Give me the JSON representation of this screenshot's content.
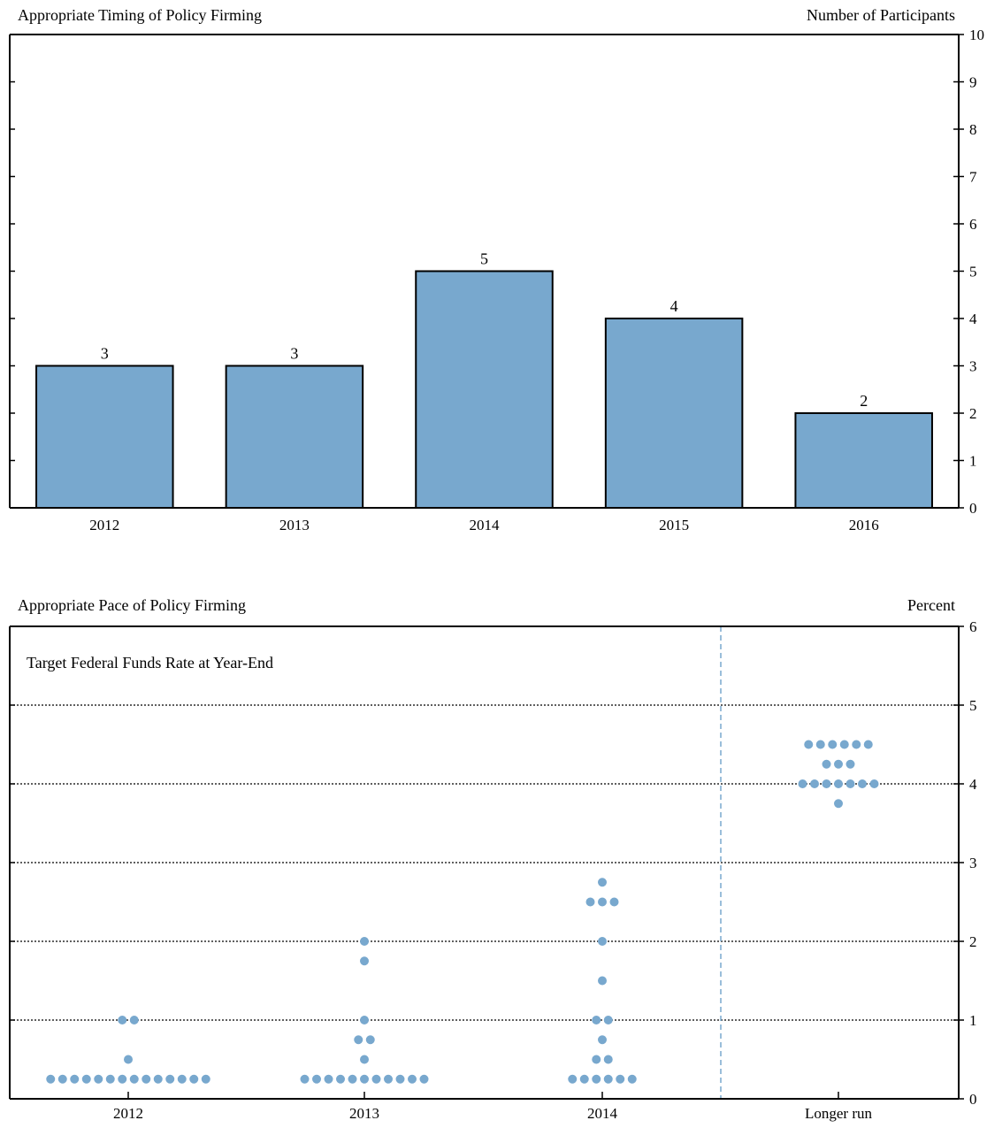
{
  "colors": {
    "bar_fill": "#78a8ce",
    "dot_fill": "#78a8ce",
    "axis": "#000000",
    "divider": "#78a8ce"
  },
  "chart_data": [
    {
      "type": "bar",
      "title": "Appropriate Timing of Policy Firming",
      "ylabel": "Number of Participants",
      "categories": [
        "2012",
        "2013",
        "2014",
        "2015",
        "2016"
      ],
      "values": [
        3,
        3,
        5,
        4,
        2
      ],
      "data_labels": [
        "3",
        "3",
        "5",
        "4",
        "2"
      ],
      "ylim": [
        0,
        10
      ],
      "yticks": [
        0,
        1,
        2,
        3,
        4,
        5,
        6,
        7,
        8,
        9,
        10
      ],
      "y_axis_side": "right",
      "grid": false
    },
    {
      "type": "scatter",
      "title": "Appropriate Pace of Policy Firming",
      "subtitle": "Target Federal Funds Rate at Year-End",
      "ylabel": "Percent",
      "categories": [
        "2012",
        "2013",
        "2014",
        "Longer run"
      ],
      "ylim": [
        0,
        6
      ],
      "yticks": [
        0,
        1,
        2,
        3,
        4,
        5,
        6
      ],
      "y_axis_side": "right",
      "grid": "dotted horizontal at 1-5",
      "divider_before": "Longer run",
      "points": [
        {
          "category": "2012",
          "rate": 1.0,
          "count": 2
        },
        {
          "category": "2012",
          "rate": 0.5,
          "count": 1
        },
        {
          "category": "2012",
          "rate": 0.25,
          "count": 14
        },
        {
          "category": "2013",
          "rate": 2.0,
          "count": 1
        },
        {
          "category": "2013",
          "rate": 1.75,
          "count": 1
        },
        {
          "category": "2013",
          "rate": 1.0,
          "count": 1
        },
        {
          "category": "2013",
          "rate": 0.75,
          "count": 2
        },
        {
          "category": "2013",
          "rate": 0.5,
          "count": 1
        },
        {
          "category": "2013",
          "rate": 0.25,
          "count": 11
        },
        {
          "category": "2014",
          "rate": 2.75,
          "count": 1
        },
        {
          "category": "2014",
          "rate": 2.5,
          "count": 3
        },
        {
          "category": "2014",
          "rate": 2.0,
          "count": 1
        },
        {
          "category": "2014",
          "rate": 1.5,
          "count": 1
        },
        {
          "category": "2014",
          "rate": 1.0,
          "count": 2
        },
        {
          "category": "2014",
          "rate": 0.75,
          "count": 1
        },
        {
          "category": "2014",
          "rate": 0.5,
          "count": 2
        },
        {
          "category": "2014",
          "rate": 0.25,
          "count": 6
        },
        {
          "category": "Longer run",
          "rate": 4.5,
          "count": 6
        },
        {
          "category": "Longer run",
          "rate": 4.25,
          "count": 3
        },
        {
          "category": "Longer run",
          "rate": 4.0,
          "count": 7
        },
        {
          "category": "Longer run",
          "rate": 3.75,
          "count": 1
        }
      ]
    }
  ]
}
